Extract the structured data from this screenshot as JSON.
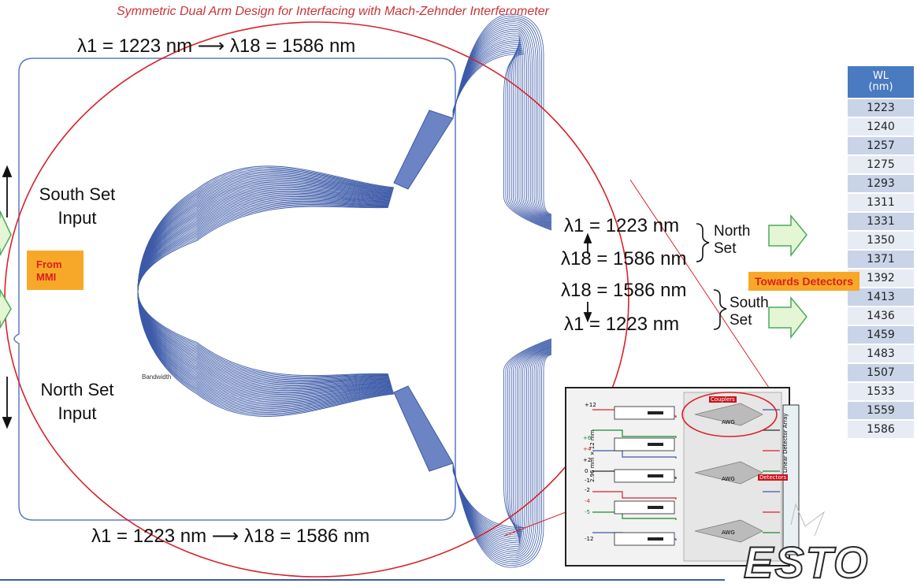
{
  "title": "Symmetric Dual Arm Design for Interfacing with Mach-Zehnder Interferometer",
  "top_range": "λ1 = 1223 nm ⟶ λ18 = 1586 nm",
  "bottom_range": "λ1 = 1223 nm ⟶ λ18 = 1586 nm",
  "left": {
    "south_input": [
      "South Set",
      "Input"
    ],
    "north_input": [
      "North Set",
      "Input"
    ],
    "from_mmi": [
      "From",
      "MMI"
    ]
  },
  "outputs": {
    "north": {
      "first": "λ1 = 1223 nm",
      "last": "λ18 = 1586 nm",
      "label": [
        "North",
        "Set"
      ]
    },
    "south": {
      "first": "λ18 = 1586 nm",
      "last": "λ1 = 1223 nm",
      "label": [
        "South",
        "Set"
      ]
    },
    "towards": "Towards Detectors"
  },
  "awg_small_label": "Bandwidth",
  "table": {
    "header": [
      "WL",
      "(nm)"
    ],
    "values": [
      "1223",
      "1240",
      "1257",
      "1275",
      "1293",
      "1311",
      "1331",
      "1350",
      "1371",
      "1392",
      "1413",
      "1436",
      "1459",
      "1483",
      "1507",
      "1533",
      "1559",
      "1586"
    ]
  },
  "inset": {
    "labels": {
      "heater": "Heater",
      "mmi": "MMI",
      "awg": "AWG",
      "detectors": "Detectors",
      "coupler": "Couplers",
      "array": "Linear Detector Array",
      "dims": "2.96 mm × 12 mm"
    },
    "voltages": [
      "+12",
      "+6",
      "+4",
      "+2",
      "0",
      "-1",
      "-2",
      "-4",
      "-5",
      "-12"
    ]
  },
  "logo": "ESTO",
  "colors": {
    "waveguide": "#3c5aa8",
    "frame": "#5a7cc0",
    "circle": "#d8222a",
    "arrow_fill": "#e4f6d4",
    "arrow_stroke": "#4caa5c",
    "orange": "#f8a828"
  }
}
